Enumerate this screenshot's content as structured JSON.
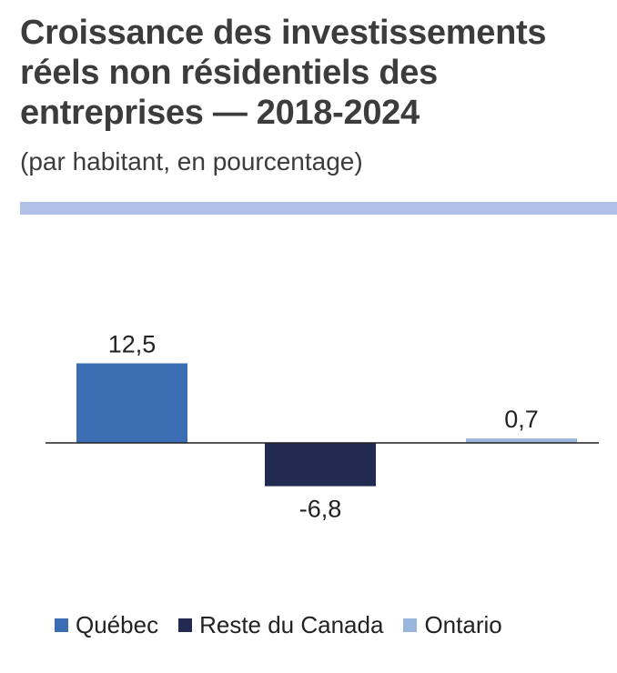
{
  "chart_data": {
    "type": "bar",
    "title": "Croissance des investissements réels non résidentiels des entreprises — 2018-2024",
    "subtitle": "(par habitant, en pourcentage)",
    "categories": [
      "Québec",
      "Reste du Canada",
      "Ontario"
    ],
    "values": [
      12.5,
      -6.8,
      0.7
    ],
    "data_labels": [
      "12,5",
      "-6,8",
      "0,7"
    ],
    "colors": [
      "#3a6db2",
      "#232a52",
      "#9bb6dd"
    ],
    "ylim": [
      -12,
      20
    ],
    "legend": {
      "position": "bottom",
      "entries": [
        "Québec",
        "Reste du Canada",
        "Ontario"
      ]
    },
    "grid": false
  },
  "colors": {
    "title": "#3c3c3c",
    "rule": "#b1c0e6",
    "axis": "#222222"
  }
}
